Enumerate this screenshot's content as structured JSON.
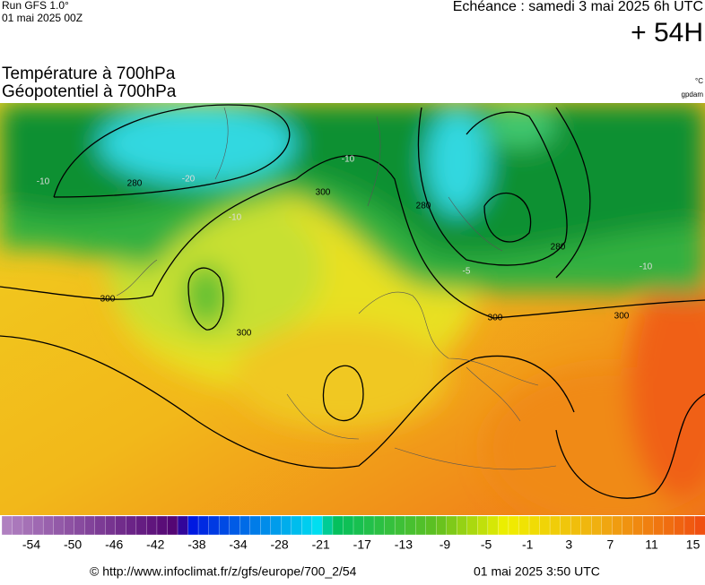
{
  "header": {
    "run": "Run GFS 1.0°",
    "run_date": "01 mai 2025 00Z",
    "forecast": "Echéance : samedi 3 mai 2025 6h UTC",
    "lead": "+ 54H"
  },
  "titles": {
    "temperature": "Température à 700hPa",
    "geopotential": "Géopotentiel à 700hPa",
    "unit_temp": "°C",
    "unit_geo": "gpdam"
  },
  "map": {
    "contour_labels": [
      "280",
      "300",
      "300",
      "300",
      "300",
      "300",
      "280",
      "280",
      "-10",
      "-10",
      "-10",
      "-10",
      "-20",
      "-5"
    ]
  },
  "colorbar": {
    "labels": [
      -54,
      -50,
      -46,
      -42,
      -38,
      -34,
      -28,
      -21,
      -17,
      -13,
      -9,
      -5,
      -1,
      3,
      7,
      11,
      15
    ]
  },
  "footer": {
    "source": "© http://www.infoclimat.fr/z/gfs/europe/700_2/54",
    "issued": "01 mai 2025  3:50 UTC"
  }
}
